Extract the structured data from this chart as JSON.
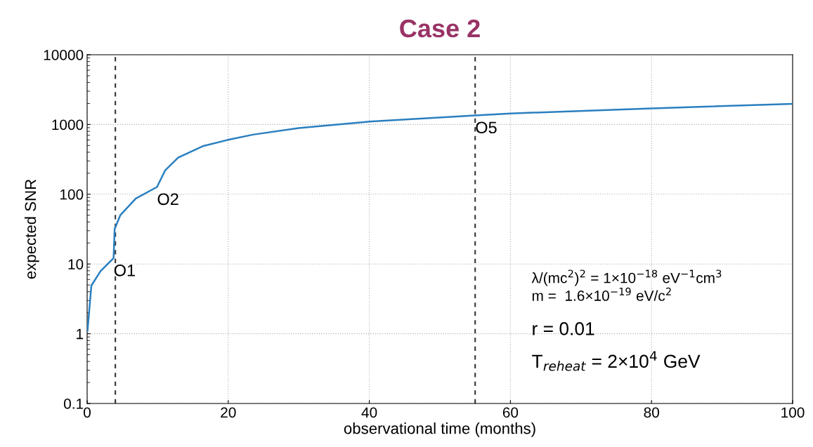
{
  "chart_data": {
    "type": "line",
    "title": "Case 2",
    "xlabel": "observational time (months)",
    "ylabel": "expected SNR",
    "x": [
      0.05,
      0.6,
      1.9,
      3.75,
      3.9,
      4.7,
      6.9,
      9.9,
      11.05,
      12.9,
      16.5,
      19.85,
      23.5,
      30,
      40,
      55,
      60,
      80,
      100
    ],
    "series": [
      {
        "color": "#2a7fc0",
        "values": [
          1.1,
          4.9,
          7.9,
          12.1,
          31.8,
          50,
          87,
          127,
          219,
          335,
          493,
          598,
          715,
          890,
          1100,
          1350,
          1440,
          1700,
          1980
        ]
      }
    ],
    "xlim": [
      0,
      100
    ],
    "xticks": [
      0,
      20,
      40,
      60,
      80,
      100
    ],
    "ylim": [
      0.1,
      10000
    ],
    "yticks": [
      0.1,
      1,
      10,
      100,
      1000,
      10000
    ],
    "log": "y",
    "grid": true,
    "marker": "none",
    "line_style": "solid",
    "ref_lines": [
      {
        "axis": "x",
        "value": 4,
        "color": "#333333",
        "line_style": "dashed"
      },
      {
        "axis": "x",
        "value": 55,
        "color": "#333333",
        "line_style": "dashed"
      }
    ],
    "annotations": [
      {
        "text": "O1",
        "x": 3.75,
        "y": 12.1
      },
      {
        "text": "O2",
        "x": 9.9,
        "y": 127
      },
      {
        "text": "O5",
        "x": 55,
        "y": 1350
      },
      "λ/(mc$^{2}$)$^{2}$ = 1×10$^{−18}$ eV$^{−1}$cm$^{3}$",
      "m =  1.6×10$^{−19}$ eV/c$^{2}$",
      "r = 0.01",
      "T$_{reheat}$ = 2×10$^{4}$ GeV"
    ]
  }
}
